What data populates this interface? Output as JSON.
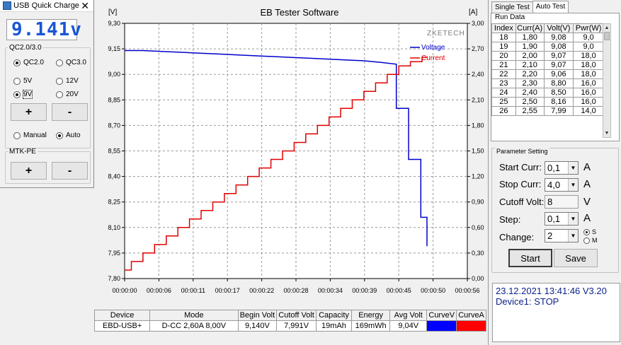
{
  "usb_window": {
    "title": "USB Quick Charge",
    "close_glyph": "✕",
    "display_value": "9.141v",
    "qc_group": {
      "legend": "QC2.0/3.0",
      "options": [
        {
          "label": "QC2.0",
          "selected": true
        },
        {
          "label": "QC3.0",
          "selected": false
        },
        {
          "label": "5V",
          "selected": false
        },
        {
          "label": "12V",
          "selected": false
        },
        {
          "label": "9V",
          "selected": true
        },
        {
          "label": "20V",
          "selected": false
        }
      ],
      "plus_label": "+",
      "minus_label": "-",
      "mode_manual": "Manual",
      "mode_auto": "Auto"
    },
    "mtk_group": {
      "legend": "MTK-PE",
      "plus_label": "+",
      "minus_label": "-"
    }
  },
  "chart_data": {
    "type": "line",
    "title": "EB Tester Software",
    "watermark": "ZKETECH",
    "left_unit": "[V]",
    "right_unit": "[A]",
    "left_ylim": [
      7.8,
      9.3
    ],
    "right_ylim": [
      0.0,
      3.0
    ],
    "left_ticks": [
      "9,30",
      "9,15",
      "9,00",
      "8,85",
      "8,70",
      "8,55",
      "8,40",
      "8,25",
      "8,10",
      "7,95",
      "7,80"
    ],
    "right_ticks": [
      "3,00",
      "2,70",
      "2,40",
      "2,10",
      "1,80",
      "1,50",
      "1,20",
      "0,90",
      "0,60",
      "0,30",
      "0,00"
    ],
    "x_ticks": [
      "00:00:00",
      "00:00:06",
      "00:00:11",
      "00:00:17",
      "00:00:22",
      "00:00:28",
      "00:00:34",
      "00:00:39",
      "00:00:45",
      "00:00:50",
      "00:00:56"
    ],
    "xlim_seconds": [
      0,
      56
    ],
    "grid": true,
    "legend_position": "top-right",
    "series": [
      {
        "name": "Voltage",
        "color": "#0000cc",
        "axis": "left",
        "x": [
          0,
          3,
          6,
          9,
          12,
          15,
          18,
          21,
          24,
          27,
          30,
          33,
          36,
          39,
          42,
          44.4,
          44.4,
          46.4,
          46.4,
          48.4,
          48.4,
          49.4,
          49.4
        ],
        "y": [
          9.14,
          9.14,
          9.135,
          9.13,
          9.125,
          9.12,
          9.115,
          9.11,
          9.105,
          9.1,
          9.095,
          9.09,
          9.085,
          9.08,
          9.07,
          9.06,
          8.8,
          8.8,
          8.5,
          8.5,
          8.16,
          8.16,
          7.99
        ]
      },
      {
        "name": "Current",
        "color": "#e00000",
        "axis": "right",
        "steps": [
          [
            0.0,
            0.1
          ],
          [
            1.1,
            0.2
          ],
          [
            3.0,
            0.3
          ],
          [
            4.9,
            0.4
          ],
          [
            6.8,
            0.5
          ],
          [
            8.7,
            0.6
          ],
          [
            10.6,
            0.7
          ],
          [
            12.5,
            0.8
          ],
          [
            14.4,
            0.9
          ],
          [
            16.3,
            1.0
          ],
          [
            18.2,
            1.1
          ],
          [
            20.1,
            1.2
          ],
          [
            22.0,
            1.3
          ],
          [
            23.9,
            1.4
          ],
          [
            25.8,
            1.5
          ],
          [
            27.7,
            1.6
          ],
          [
            29.6,
            1.7
          ],
          [
            31.5,
            1.8
          ],
          [
            33.4,
            1.9
          ],
          [
            35.3,
            2.0
          ],
          [
            37.2,
            2.1
          ],
          [
            39.1,
            2.2
          ],
          [
            41.0,
            2.3
          ],
          [
            42.9,
            2.4
          ],
          [
            44.8,
            2.5
          ],
          [
            46.7,
            2.55
          ],
          [
            48.6,
            2.6
          ]
        ],
        "end_x": 49.4
      }
    ]
  },
  "info_table": {
    "headers": [
      "Device",
      "Mode",
      "Begin Volt",
      "Cutoff Volt",
      "Capacity",
      "Energy",
      "Avg Volt",
      "CurveV",
      "CurveA"
    ],
    "row": [
      "EBD-USB+",
      "D-CC  2,60A  8,00V",
      "9,140V",
      "7,991V",
      "19mAh",
      "169mWh",
      "9,04V"
    ],
    "curve_v_color": "#0000ff",
    "curve_a_color": "#ff0000"
  },
  "right_panel": {
    "tabs": [
      {
        "label": "Single Test",
        "active": false
      },
      {
        "label": "Auto Test",
        "active": true
      }
    ],
    "run_data": {
      "legend": "Run Data",
      "headers": [
        "Index",
        "Curr(A)",
        "Volt(V)",
        "Pwr(W)"
      ],
      "rows": [
        [
          "18",
          "1,80",
          "9,08",
          "9,0"
        ],
        [
          "19",
          "1,90",
          "9,08",
          "9,0"
        ],
        [
          "20",
          "2,00",
          "9,07",
          "18,0"
        ],
        [
          "21",
          "2,10",
          "9,07",
          "18,0"
        ],
        [
          "22",
          "2,20",
          "9,06",
          "18,0"
        ],
        [
          "23",
          "2,30",
          "8,80",
          "16,0"
        ],
        [
          "24",
          "2,40",
          "8,50",
          "16,0"
        ],
        [
          "25",
          "2,50",
          "8,16",
          "16,0"
        ],
        [
          "26",
          "2,55",
          "7,99",
          "14,0"
        ]
      ]
    },
    "params": {
      "legend": "Parameter Setting",
      "start_curr_label": "Start Curr:",
      "start_curr_value": "0,1",
      "start_curr_unit": "A",
      "stop_curr_label": "Stop Curr:",
      "stop_curr_value": "4,0",
      "stop_curr_unit": "A",
      "cutoff_volt_label": "Cutoff Volt:",
      "cutoff_volt_value": "8",
      "cutoff_volt_unit": "V",
      "step_label": "Step:",
      "step_value": "0,1",
      "step_unit": "A",
      "change_label": "Change:",
      "change_value": "2",
      "change_s": "S",
      "change_m": "M",
      "start_button": "Start",
      "save_button": "Save"
    },
    "status": {
      "datetime": "23.12.2021  13:41:46  V3.20",
      "device_line": "Device1: STOP"
    }
  }
}
